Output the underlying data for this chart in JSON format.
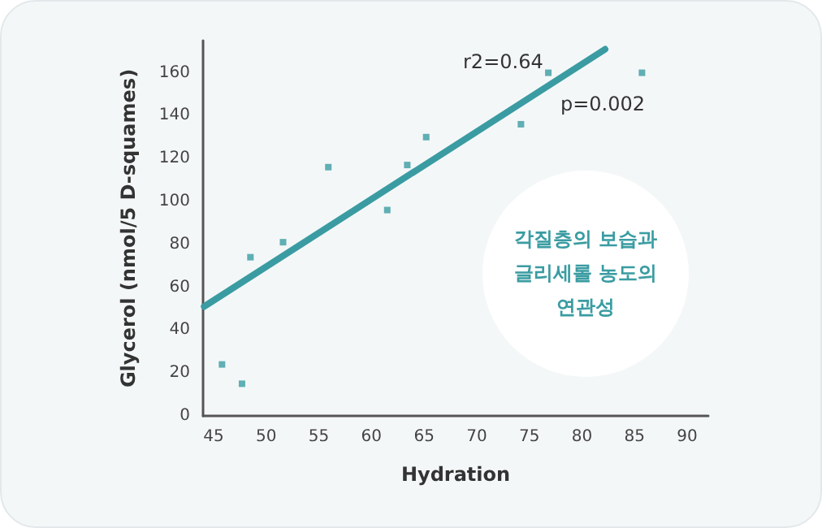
{
  "chart_data": {
    "type": "scatter",
    "xlabel": "Hydration",
    "ylabel": "Glycerol (nmol/5 D-squames)",
    "xlim": [
      44,
      92
    ],
    "ylim": [
      0,
      175
    ],
    "xticks": [
      45,
      50,
      55,
      60,
      65,
      70,
      75,
      80,
      85,
      90
    ],
    "yticks": [
      0,
      20,
      40,
      60,
      80,
      100,
      120,
      140,
      160
    ],
    "grid": false,
    "series": [
      {
        "color": "#3a9ca2",
        "marker": "square",
        "x": [
          45.8,
          47.7,
          48.5,
          51.6,
          55.9,
          61.5,
          63.4,
          65.2,
          74.2,
          76.8,
          85.7
        ],
        "values": [
          24,
          15,
          74,
          81,
          116,
          96,
          117,
          130,
          136,
          160,
          160
        ]
      },
      {
        "type": "line",
        "color": "#3a9ca2",
        "line_style": "solid",
        "marker": "none",
        "x": [
          44.1,
          82.2
        ],
        "values": [
          51,
          171
        ]
      }
    ],
    "annotations": [
      "r2=0.64",
      "p=0.002",
      "각질층의 보습과\n글리세롤 농도의\n연관성"
    ]
  }
}
